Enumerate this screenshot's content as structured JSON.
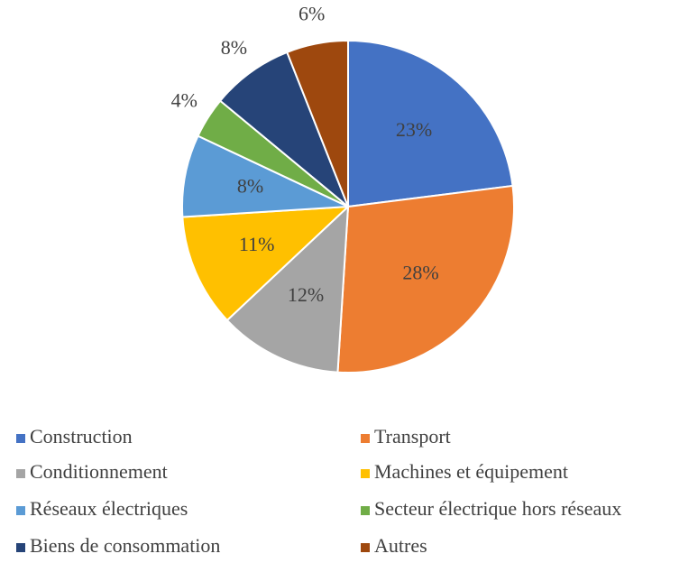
{
  "chart_data": {
    "type": "pie",
    "categories": [
      "Construction",
      "Transport",
      "Conditionnement",
      "Machines et équipement",
      "Réseaux électriques",
      "Secteur électrique hors réseaux",
      "Biens de consommation",
      "Autres"
    ],
    "values": [
      23,
      28,
      12,
      11,
      8,
      4,
      8,
      6
    ],
    "value_labels": [
      "23%",
      "28%",
      "12%",
      "11%",
      "8%",
      "4%",
      "8%",
      "6%"
    ],
    "colors": [
      "#4472c4",
      "#ed7d31",
      "#a5a5a5",
      "#ffc000",
      "#5b9bd5",
      "#70ad47",
      "#264478",
      "#9e480e"
    ],
    "legend": "bottom"
  }
}
